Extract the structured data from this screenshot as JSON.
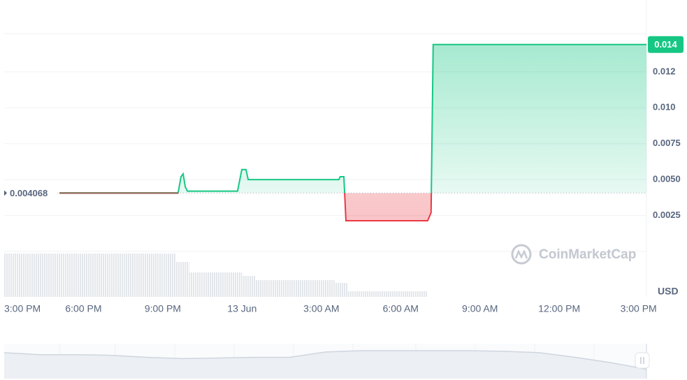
{
  "chart_data": {
    "type": "line",
    "x": [
      2.09,
      6.58,
      6.69,
      6.77,
      6.85,
      6.93,
      8.83,
      8.99,
      9.15,
      9.23,
      12.66,
      12.71,
      12.85,
      12.93,
      16.02,
      16.15,
      16.23,
      24.3
    ],
    "values": [
      0.004068,
      0.004068,
      0.0052,
      0.0054,
      0.0045,
      0.0042,
      0.0042,
      0.0057,
      0.0057,
      0.005,
      0.005,
      0.0052,
      0.0052,
      0.00214,
      0.00214,
      0.0027,
      0.0144,
      0.0144
    ],
    "up_color": "#16c784",
    "down_color": "#ea3943",
    "baseline": 0.004068,
    "last_price": {
      "value": 0.0144,
      "label": "0.014"
    },
    "ylim": [
      0,
      0.0175
    ],
    "yticks": [
      0.0025,
      {
        "value": 0.005,
        "label": "0.0050"
      },
      0.0075,
      {
        "value": 0.01,
        "label": "0.010"
      },
      {
        "value": 0.0125,
        "label": "0.012"
      }
    ],
    "y_unit": "USD",
    "xlim": [
      0,
      24.3
    ],
    "xticks": [
      {
        "value": 0,
        "label": "3:00 PM"
      },
      {
        "value": 3,
        "label": "6:00 PM"
      },
      {
        "value": 6,
        "label": "9:00 PM"
      },
      {
        "value": 9,
        "label": "13 Jun"
      },
      {
        "value": 12,
        "label": "3:00 AM"
      },
      {
        "value": 15,
        "label": "6:00 AM"
      },
      {
        "value": 18,
        "label": "9:00 AM"
      },
      {
        "value": 21,
        "label": "12:00 PM"
      },
      {
        "value": 24,
        "label": "3:00 PM"
      }
    ],
    "grid": true,
    "watermark": "CoinMarketCap",
    "volume": {
      "bins": [
        0,
        0.5,
        1,
        1.5,
        2,
        2.5,
        3,
        3.5,
        4,
        4.5,
        5,
        5.5,
        6,
        6.5,
        7,
        7.5,
        8,
        8.5,
        9,
        9.5,
        10,
        10.5,
        11,
        11.5,
        12,
        12.5,
        13,
        13.5,
        14,
        14.5,
        15,
        15.5,
        16
      ],
      "values": [
        62,
        62,
        62,
        62,
        62,
        62,
        62,
        62,
        62,
        62,
        62,
        62,
        62,
        50,
        35,
        35,
        35,
        35,
        30,
        24,
        24,
        24,
        24,
        24,
        24,
        20,
        8,
        8,
        8,
        8,
        8,
        8
      ]
    },
    "navigator": {
      "values": [
        37,
        34,
        34,
        33,
        30,
        28,
        29,
        30,
        30,
        38,
        40,
        40,
        40,
        40,
        39,
        37,
        30,
        22,
        12
      ]
    }
  }
}
